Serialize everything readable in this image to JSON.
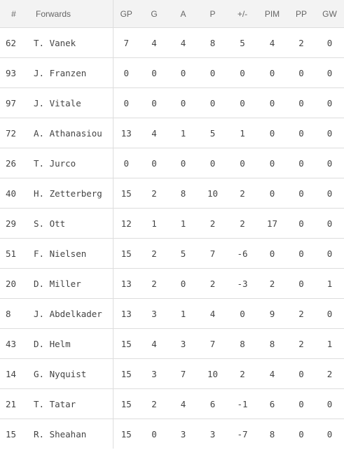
{
  "table": {
    "headers": {
      "num": "#",
      "name": "Forwards",
      "gp": "GP",
      "g": "G",
      "a": "A",
      "p": "P",
      "pm": "+/-",
      "pim": "PIM",
      "pp": "PP",
      "gw": "GW"
    },
    "rows": [
      {
        "num": "62",
        "name": "T. Vanek",
        "gp": "7",
        "g": "4",
        "a": "4",
        "p": "8",
        "pm": "5",
        "pim": "4",
        "pp": "2",
        "gw": "0"
      },
      {
        "num": "93",
        "name": "J. Franzen",
        "gp": "0",
        "g": "0",
        "a": "0",
        "p": "0",
        "pm": "0",
        "pim": "0",
        "pp": "0",
        "gw": "0"
      },
      {
        "num": "97",
        "name": "J. Vitale",
        "gp": "0",
        "g": "0",
        "a": "0",
        "p": "0",
        "pm": "0",
        "pim": "0",
        "pp": "0",
        "gw": "0"
      },
      {
        "num": "72",
        "name": "A. Athanasiou",
        "gp": "13",
        "g": "4",
        "a": "1",
        "p": "5",
        "pm": "1",
        "pim": "0",
        "pp": "0",
        "gw": "0"
      },
      {
        "num": "26",
        "name": "T. Jurco",
        "gp": "0",
        "g": "0",
        "a": "0",
        "p": "0",
        "pm": "0",
        "pim": "0",
        "pp": "0",
        "gw": "0"
      },
      {
        "num": "40",
        "name": "H. Zetterberg",
        "gp": "15",
        "g": "2",
        "a": "8",
        "p": "10",
        "pm": "2",
        "pim": "0",
        "pp": "0",
        "gw": "0"
      },
      {
        "num": "29",
        "name": "S. Ott",
        "gp": "12",
        "g": "1",
        "a": "1",
        "p": "2",
        "pm": "2",
        "pim": "17",
        "pp": "0",
        "gw": "0"
      },
      {
        "num": "51",
        "name": "F. Nielsen",
        "gp": "15",
        "g": "2",
        "a": "5",
        "p": "7",
        "pm": "-6",
        "pim": "0",
        "pp": "0",
        "gw": "0"
      },
      {
        "num": "20",
        "name": "D. Miller",
        "gp": "13",
        "g": "2",
        "a": "0",
        "p": "2",
        "pm": "-3",
        "pim": "2",
        "pp": "0",
        "gw": "1"
      },
      {
        "num": "8",
        "name": "J. Abdelkader",
        "gp": "13",
        "g": "3",
        "a": "1",
        "p": "4",
        "pm": "0",
        "pim": "9",
        "pp": "2",
        "gw": "0"
      },
      {
        "num": "43",
        "name": "D. Helm",
        "gp": "15",
        "g": "4",
        "a": "3",
        "p": "7",
        "pm": "8",
        "pim": "8",
        "pp": "2",
        "gw": "1"
      },
      {
        "num": "14",
        "name": "G. Nyquist",
        "gp": "15",
        "g": "3",
        "a": "7",
        "p": "10",
        "pm": "2",
        "pim": "4",
        "pp": "0",
        "gw": "2"
      },
      {
        "num": "21",
        "name": "T. Tatar",
        "gp": "15",
        "g": "2",
        "a": "4",
        "p": "6",
        "pm": "-1",
        "pim": "6",
        "pp": "0",
        "gw": "0"
      },
      {
        "num": "15",
        "name": "R. Sheahan",
        "gp": "15",
        "g": "0",
        "a": "3",
        "p": "3",
        "pm": "-7",
        "pim": "8",
        "pp": "0",
        "gw": "0"
      }
    ]
  }
}
